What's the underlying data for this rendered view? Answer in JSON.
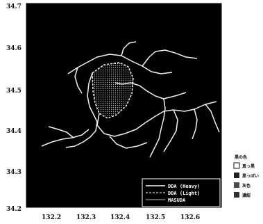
{
  "map": {
    "x_ticks": [
      "132.2",
      "132.3",
      "132.4",
      "132.5",
      "132.6"
    ],
    "y_ticks": [
      "34.7",
      "34.6",
      "34.5",
      "34.4",
      "34.3",
      "34.2"
    ]
  },
  "legend": {
    "items": [
      {
        "label": "DDA (Heavy)"
      },
      {
        "label": "DDA (Light)"
      },
      {
        "label": "MASUDA"
      }
    ]
  },
  "side_legend": {
    "title": "黒の色",
    "items": [
      {
        "swatch": "outline",
        "label": "真っ黒"
      },
      {
        "swatch": "#202020",
        "label": "黒っぽい"
      },
      {
        "swatch": "#4a4a4a",
        "label": "灰色"
      },
      {
        "swatch": "#303030",
        "label": "濃紺"
      }
    ]
  },
  "colors": {
    "background": "#000000",
    "border": "#ffffff",
    "road": "#f2f2f2",
    "dotted_area": "#dcdcdc"
  }
}
